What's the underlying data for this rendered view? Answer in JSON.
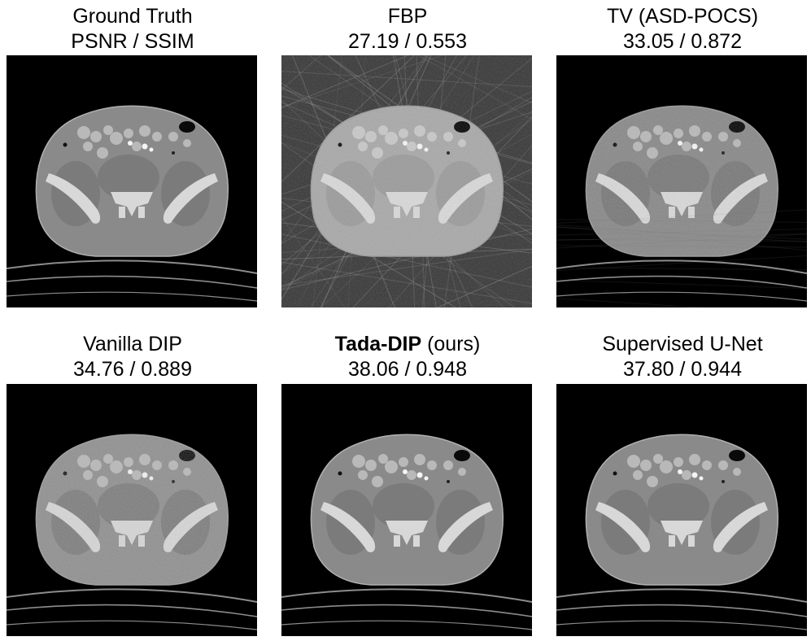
{
  "panels": [
    {
      "title": "Ground Truth",
      "metrics": "PSNR / SSIM",
      "variant": "gt"
    },
    {
      "title": "FBP",
      "metrics": "27.19 / 0.553",
      "variant": "fbp"
    },
    {
      "title": "TV (ASD-POCS)",
      "metrics": "33.05 / 0.872",
      "variant": "tv"
    },
    {
      "title": "Vanilla DIP",
      "metrics": "34.76 / 0.889",
      "variant": "dip"
    },
    {
      "title_bold": "Tada-DIP",
      "title_rest": " (ours)",
      "metrics": "38.06 / 0.948",
      "variant": "tada"
    },
    {
      "title": "Supervised U-Net",
      "metrics": "37.80 / 0.944",
      "variant": "unet"
    }
  ],
  "colors": {
    "background": "#ffffff",
    "scan_background": "#000000",
    "body_tissue": "#8a8a8a",
    "bone": "#d8d8d8",
    "gas": "#0a0a0a"
  }
}
